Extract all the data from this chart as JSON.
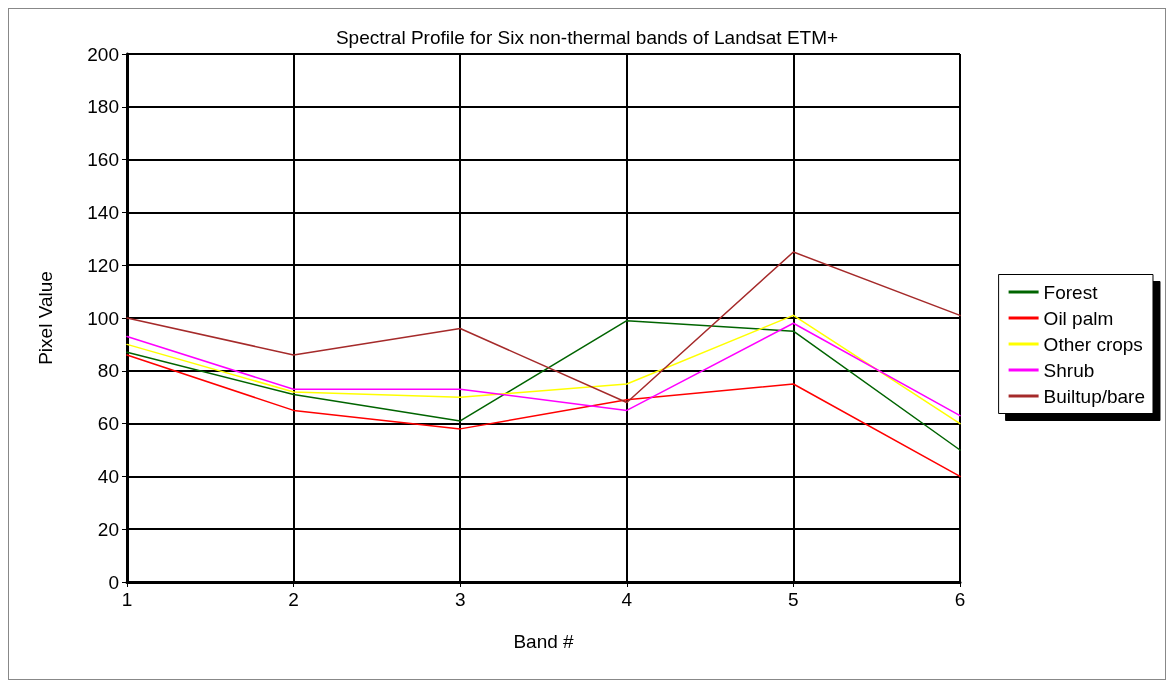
{
  "chart_data": {
    "type": "line",
    "title": "Spectral Profile for Six non-thermal bands of Landsat ETM+",
    "xlabel": "Band #",
    "ylabel": "Pixel Value",
    "x": [
      1,
      2,
      3,
      4,
      5,
      6
    ],
    "xlim": [
      1,
      6
    ],
    "xticks": [
      1,
      2,
      3,
      4,
      5,
      6
    ],
    "ylim": [
      0,
      200
    ],
    "yticks": [
      0,
      20,
      40,
      60,
      80,
      100,
      120,
      140,
      160,
      180,
      200
    ],
    "grid": true,
    "legend": "right",
    "marker": "none",
    "line_style": "solid",
    "series": [
      {
        "name": "Forest",
        "color": "#006400",
        "values": [
          87,
          71,
          61,
          99,
          95,
          50
        ]
      },
      {
        "name": "Oil palm",
        "color": "#ff0000",
        "values": [
          86,
          65,
          58,
          69,
          75,
          40
        ]
      },
      {
        "name": "Other crops",
        "color": "#ffff00",
        "values": [
          90,
          72,
          70,
          75,
          101,
          60
        ]
      },
      {
        "name": "Shrub",
        "color": "#ff00ff",
        "values": [
          93,
          73,
          73,
          65,
          98,
          63
        ]
      },
      {
        "name": "Builtup/bare",
        "color": "#a52a2a",
        "values": [
          100,
          86,
          96,
          68,
          125,
          101
        ]
      }
    ]
  }
}
